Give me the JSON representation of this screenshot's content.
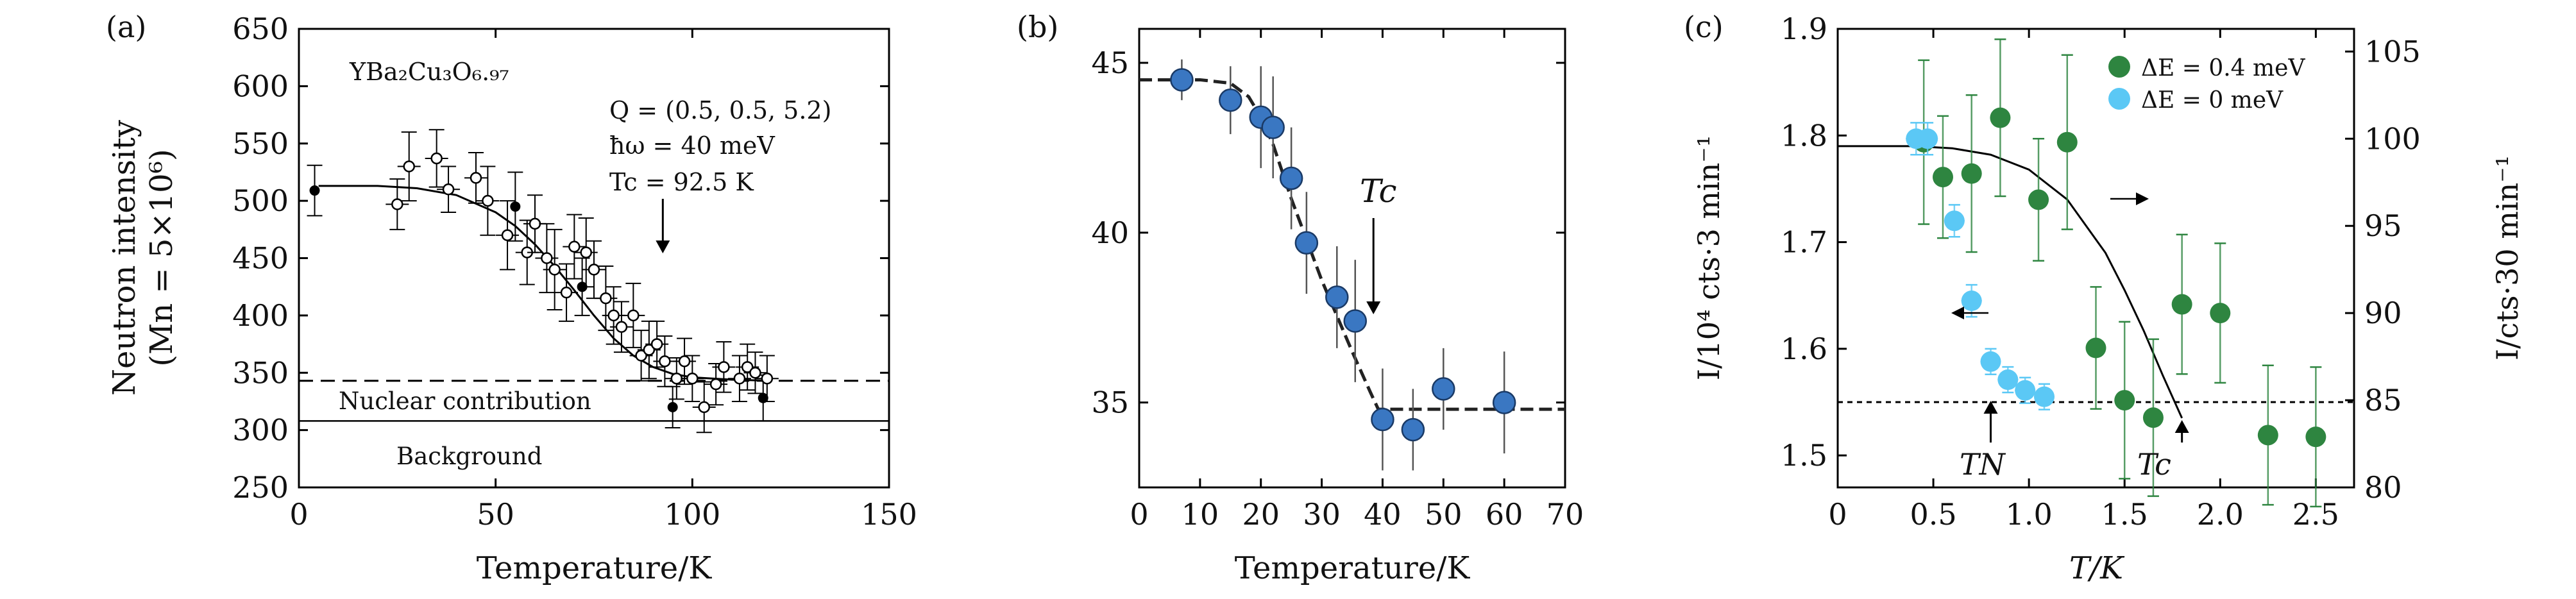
{
  "panels": [
    {
      "tag": "(a)"
    },
    {
      "tag": "(b)"
    },
    {
      "tag": "(c)"
    }
  ],
  "chart_data": [
    {
      "type": "scatter",
      "panel": "(a)",
      "xlabel": "Temperature/K",
      "ylabel": [
        "Neutron intensity",
        "(Mn = 5×10⁶)"
      ],
      "xlim": [
        0,
        150
      ],
      "ylim": [
        250,
        650
      ],
      "xticks": [
        0,
        50,
        100,
        150
      ],
      "yticks": [
        250,
        300,
        350,
        400,
        450,
        500,
        550,
        600,
        650
      ],
      "annotations": {
        "compound": "YBa₂Cu₃O₆.₉₇",
        "q_vector": "Q = (0.5, 0.5, 5.2)",
        "energy": "ħω = 40 meV",
        "tc": "Tc = 92.5 K",
        "nuclear": "Nuclear contribution",
        "background": "Background"
      },
      "reference_lines": {
        "nuclear_contribution": 343,
        "background": 308
      },
      "tc_arrow_x": 92.5,
      "series": [
        {
          "marker": "filled",
          "points": [
            [
              4,
              509,
              22
            ],
            [
              55,
              495,
              30
            ],
            [
              72,
              425,
              25
            ],
            [
              95,
              320,
              18
            ],
            [
              118,
              328,
              20
            ]
          ]
        },
        {
          "marker": "open",
          "points": [
            [
              25,
              497,
              22
            ],
            [
              28,
              530,
              30
            ],
            [
              35,
              537,
              25
            ],
            [
              38,
              510,
              20
            ],
            [
              45,
              520,
              22
            ],
            [
              48,
              500,
              30
            ],
            [
              53,
              470,
              30
            ],
            [
              58,
              455,
              28
            ],
            [
              60,
              480,
              25
            ],
            [
              63,
              450,
              30
            ],
            [
              65,
              440,
              35
            ],
            [
              68,
              420,
              25
            ],
            [
              70,
              460,
              28
            ],
            [
              73,
              455,
              30
            ],
            [
              75,
              440,
              25
            ],
            [
              78,
              415,
              28
            ],
            [
              80,
              400,
              25
            ],
            [
              82,
              390,
              22
            ],
            [
              85,
              400,
              28
            ],
            [
              87,
              365,
              22
            ],
            [
              89,
              370,
              25
            ],
            [
              91,
              375,
              20
            ],
            [
              93,
              360,
              22
            ],
            [
              96,
              345,
              18
            ],
            [
              98,
              360,
              20
            ],
            [
              100,
              345,
              20
            ],
            [
              103,
              320,
              22
            ],
            [
              106,
              340,
              18
            ],
            [
              108,
              355,
              22
            ],
            [
              112,
              345,
              20
            ],
            [
              114,
              355,
              20
            ],
            [
              116,
              350,
              18
            ],
            [
              119,
              345,
              20
            ]
          ]
        }
      ],
      "fit_curve": [
        [
          5,
          513
        ],
        [
          20,
          513
        ],
        [
          30,
          511
        ],
        [
          40,
          505
        ],
        [
          50,
          490
        ],
        [
          55,
          478
        ],
        [
          60,
          462
        ],
        [
          65,
          443
        ],
        [
          70,
          422
        ],
        [
          75,
          400
        ],
        [
          80,
          380
        ],
        [
          85,
          365
        ],
        [
          90,
          355
        ],
        [
          95,
          349
        ],
        [
          100,
          346
        ],
        [
          110,
          344
        ],
        [
          120,
          343
        ]
      ]
    },
    {
      "type": "scatter",
      "panel": "(b)",
      "xlabel": "Temperature/K",
      "xlim": [
        0,
        70
      ],
      "ylim": [
        32.5,
        46
      ],
      "xticks": [
        0,
        10,
        20,
        30,
        40,
        50,
        60,
        70
      ],
      "yticks": [
        35,
        40,
        45
      ],
      "annotations": {
        "tc": "Tc"
      },
      "tc_arrow_x": 38.5,
      "series": [
        {
          "marker": "filled",
          "color": "#3a77c2",
          "points": [
            [
              7,
              44.5,
              0.6
            ],
            [
              15,
              43.9,
              1.0
            ],
            [
              20,
              43.4,
              1.5
            ],
            [
              22,
              43.1,
              1.5
            ],
            [
              25,
              41.6,
              1.5
            ],
            [
              27.5,
              39.7,
              1.5
            ],
            [
              32.5,
              38.1,
              1.5
            ],
            [
              35.5,
              37.4,
              1.8
            ],
            [
              40,
              34.5,
              1.5
            ],
            [
              45,
              34.2,
              1.2
            ],
            [
              50,
              35.4,
              1.2
            ],
            [
              60,
              35.0,
              1.5
            ]
          ]
        }
      ],
      "fit_curve": [
        [
          0,
          44.5
        ],
        [
          10,
          44.5
        ],
        [
          15,
          44.4
        ],
        [
          18,
          44.0
        ],
        [
          20,
          43.4
        ],
        [
          22,
          42.6
        ],
        [
          25,
          41.0
        ],
        [
          30,
          38.6
        ],
        [
          35,
          36.5
        ],
        [
          38,
          35.3
        ],
        [
          39.3,
          34.8
        ],
        [
          70,
          34.8
        ]
      ]
    },
    {
      "type": "scatter",
      "panel": "(c)",
      "xlabel": "T/K",
      "ylabel_left": "I/10⁴ cts·3 min⁻¹",
      "ylabel_right": "I/cts·30 min⁻¹",
      "xlim": [
        0,
        2.7
      ],
      "ylim_left": [
        1.47,
        1.9
      ],
      "ylim_right": [
        80,
        106.3
      ],
      "xticks": [
        0,
        0.5,
        1.0,
        1.5,
        2.0,
        2.5
      ],
      "xtick_labels": [
        "0",
        "0.5",
        "1.0",
        "1.5",
        "2.0",
        "2.5"
      ],
      "yticks_left": [
        1.5,
        1.6,
        1.7,
        1.8,
        1.9
      ],
      "yticks_right": [
        80,
        85,
        90,
        95,
        100,
        105
      ],
      "legend_position": "top-right",
      "annotations": {
        "tn": "TN",
        "tc": "Tc"
      },
      "reference_line_left": 1.55,
      "tn_arrow_x": 0.8,
      "tc_arrow_x": 1.8,
      "series": [
        {
          "name": "ΔE = 0.4 meV",
          "axis": "right",
          "color": "#2e8540",
          "points": [
            [
              0.45,
              99.8,
              4.7
            ],
            [
              0.55,
              97.8,
              3.5
            ],
            [
              0.7,
              98.0,
              4.5
            ],
            [
              0.85,
              101.2,
              4.5
            ],
            [
              1.05,
              96.5,
              3.5
            ],
            [
              1.2,
              99.8,
              5.0
            ],
            [
              1.35,
              88.0,
              3.5
            ],
            [
              1.5,
              85.0,
              4.5
            ],
            [
              1.65,
              84.0,
              4.5
            ],
            [
              1.8,
              90.5,
              4.0
            ],
            [
              2.0,
              90.0,
              4.0
            ],
            [
              2.25,
              83.0,
              4.0
            ],
            [
              2.5,
              82.9,
              4.0
            ]
          ]
        },
        {
          "name": "ΔE = 0 meV",
          "axis": "left",
          "color": "#5bc8f5",
          "points": [
            [
              0.41,
              1.797,
              0.015
            ],
            [
              0.47,
              1.797,
              0.015
            ],
            [
              0.61,
              1.72,
              0.015
            ],
            [
              0.7,
              1.645,
              0.015
            ],
            [
              0.8,
              1.588,
              0.012
            ],
            [
              0.89,
              1.571,
              0.012
            ],
            [
              0.98,
              1.561,
              0.012
            ],
            [
              1.08,
              1.555,
              0.012
            ]
          ]
        }
      ],
      "fit_curve": [
        [
          0,
          1.79
        ],
        [
          0.4,
          1.79
        ],
        [
          0.6,
          1.788
        ],
        [
          0.8,
          1.782
        ],
        [
          1.0,
          1.768
        ],
        [
          1.2,
          1.74
        ],
        [
          1.4,
          1.69
        ],
        [
          1.5,
          1.655
        ],
        [
          1.6,
          1.617
        ],
        [
          1.7,
          1.575
        ],
        [
          1.8,
          1.535
        ]
      ]
    }
  ]
}
